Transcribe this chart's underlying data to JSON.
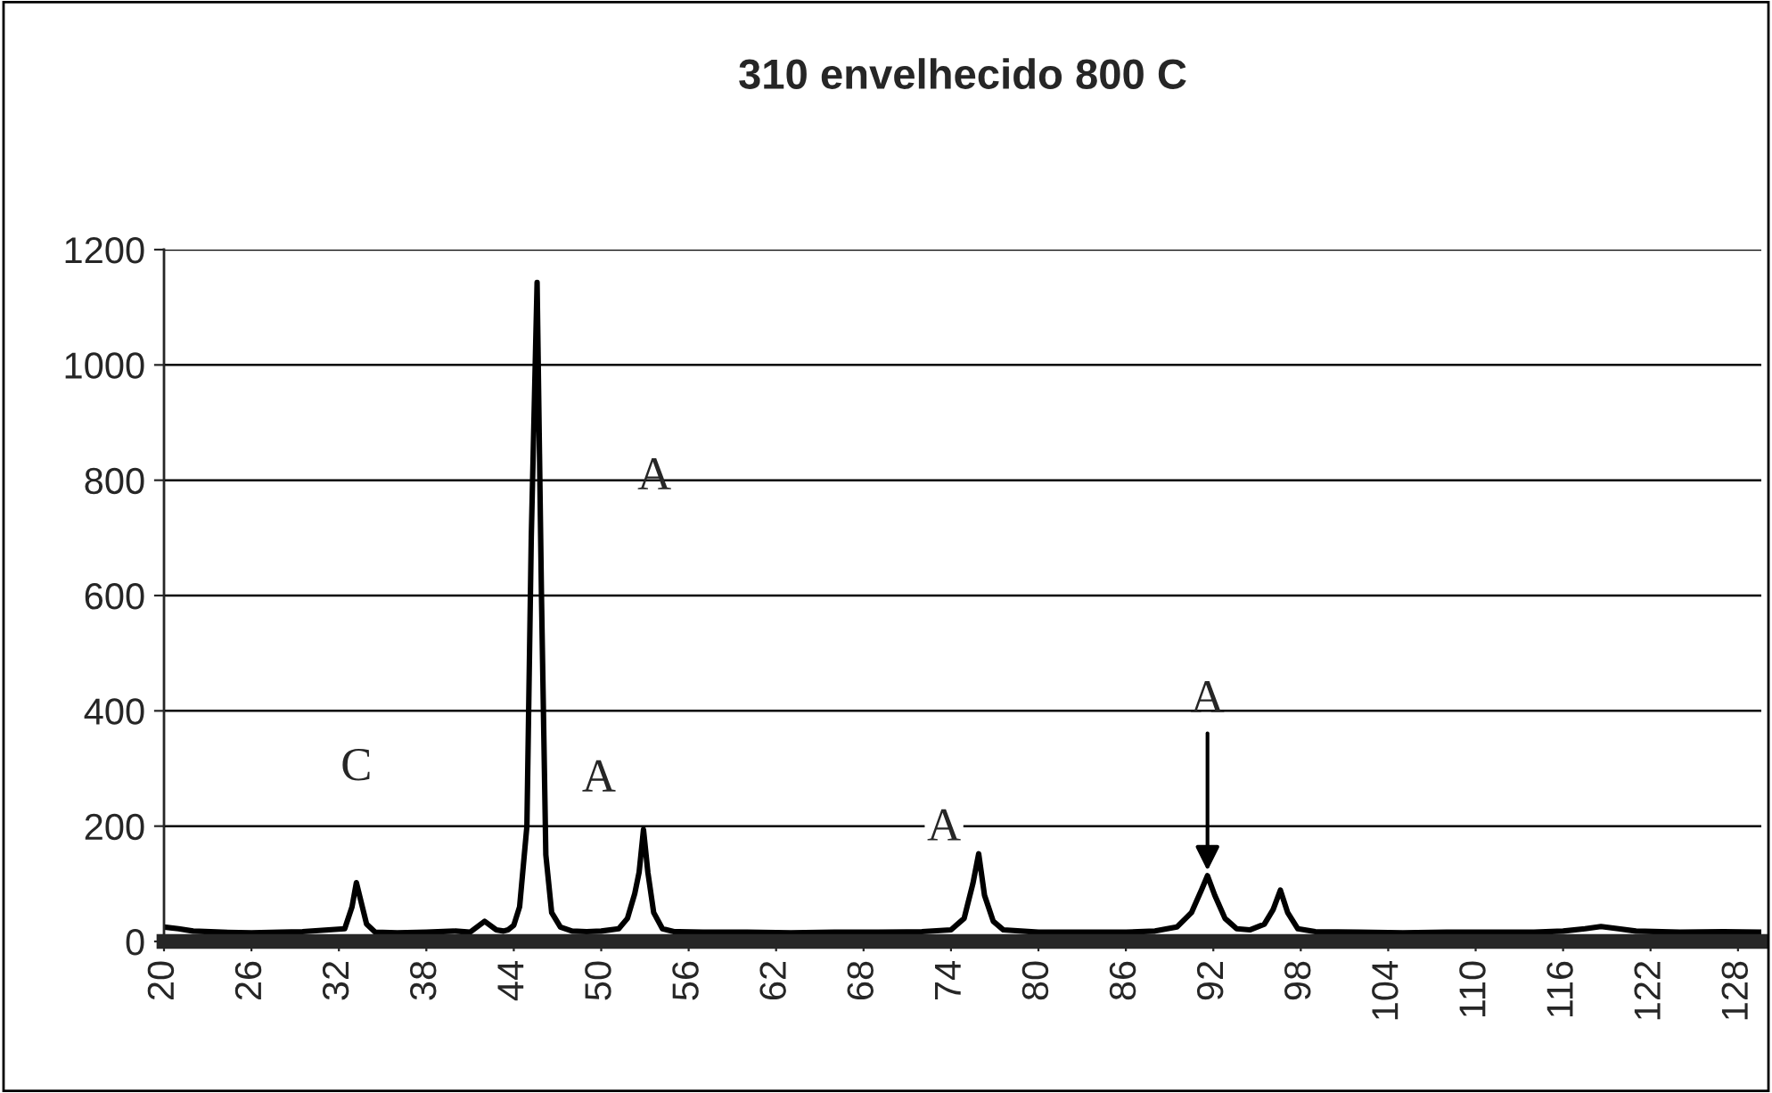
{
  "chart_data": {
    "type": "line",
    "title": "310 envelhecido 800 C",
    "x": [
      20,
      21,
      22,
      24,
      26,
      28,
      29.5,
      32.4,
      32.9,
      33.2,
      33.9,
      34.5,
      36,
      38,
      40,
      41,
      42,
      42.8,
      43.3,
      43.6,
      44.0,
      44.4,
      44.9,
      45.2,
      45.6,
      45.9,
      46.2,
      46.6,
      47.2,
      48,
      49,
      50,
      51.2,
      51.8,
      52.3,
      52.6,
      52.9,
      53.2,
      53.6,
      54.2,
      55,
      57,
      60,
      63,
      66,
      69,
      72,
      74,
      74.9,
      75.5,
      75.9,
      76.3,
      76.9,
      77.6,
      80,
      83,
      86,
      88,
      89.5,
      90.5,
      91.2,
      91.6,
      92.1,
      92.8,
      93.6,
      94.5,
      95.5,
      96.1,
      96.6,
      97.1,
      97.8,
      99,
      102,
      105,
      108,
      111,
      114,
      116,
      117.5,
      118.6,
      119.8,
      121,
      124,
      127,
      129.6
    ],
    "series": [
      {
        "color": "#000000",
        "values": [
          25,
          22,
          18,
          16,
          15,
          16,
          17,
          22,
          60,
          102,
          30,
          16,
          15,
          16,
          18,
          16,
          35,
          20,
          18,
          20,
          28,
          60,
          200,
          700,
          1143,
          600,
          150,
          50,
          25,
          18,
          17,
          18,
          22,
          40,
          83,
          120,
          194,
          120,
          50,
          22,
          17,
          16,
          16,
          15,
          16,
          16,
          17,
          20,
          40,
          100,
          152,
          80,
          35,
          20,
          16,
          16,
          16,
          18,
          25,
          50,
          90,
          114,
          80,
          40,
          22,
          20,
          30,
          55,
          89,
          50,
          22,
          17,
          16,
          15,
          16,
          16,
          16,
          18,
          22,
          26,
          22,
          18,
          16,
          17,
          16
        ]
      }
    ],
    "xlim": [
      20,
      129.6
    ],
    "xticks": [
      20,
      26,
      32,
      38,
      44,
      50,
      56,
      62,
      68,
      74,
      80,
      86,
      92,
      98,
      104,
      110,
      116,
      122,
      128
    ],
    "ylim": [
      0,
      1200
    ],
    "yticks": [
      0,
      200,
      400,
      600,
      800,
      1000,
      1200
    ],
    "grid": "y",
    "legend": false,
    "marker": "none",
    "line_style": "solid",
    "annotations": [
      {
        "text": "C",
        "x": 33.2,
        "y": 102
      },
      "A",
      {
        "text": "A",
        "x": 52.9,
        "y": 194
      },
      {
        "text": "A",
        "x": 75.9,
        "y": 152
      },
      {
        "text": "A",
        "x": 91.6,
        "y": 114
      }
    ]
  }
}
